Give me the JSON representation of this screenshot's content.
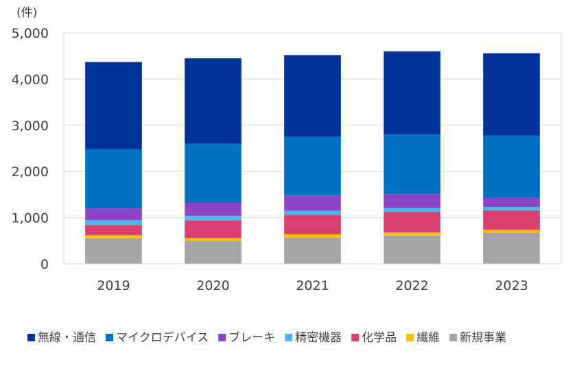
{
  "chart_data": {
    "type": "bar",
    "stacked": true,
    "unit_label": "(件)",
    "categories": [
      "2019",
      "2020",
      "2021",
      "2022",
      "2023"
    ],
    "ylim": [
      0,
      5000
    ],
    "yticks": [
      0,
      1000,
      2000,
      3000,
      4000,
      5000
    ],
    "ytick_labels": [
      "0",
      "1,000",
      "2,000",
      "3,000",
      "4,000",
      "5,000"
    ],
    "grid": true,
    "legend_position": "bottom",
    "series": [
      {
        "name": "新規事業",
        "color": "#A5A5A5",
        "values": [
          550,
          490,
          570,
          610,
          670
        ]
      },
      {
        "name": "繊維",
        "color": "#FFC000",
        "values": [
          70,
          70,
          70,
          70,
          70
        ]
      },
      {
        "name": "化学品",
        "color": "#D94070",
        "values": [
          220,
          380,
          420,
          440,
          420
        ]
      },
      {
        "name": "精密機器",
        "color": "#4BB8EC",
        "values": [
          110,
          100,
          90,
          90,
          70
        ]
      },
      {
        "name": "ブレーキ",
        "color": "#8E44C9",
        "values": [
          250,
          280,
          330,
          300,
          200
        ]
      },
      {
        "name": "マイクロデバイス",
        "color": "#0070C0",
        "values": [
          1280,
          1280,
          1270,
          1290,
          1350
        ]
      },
      {
        "name": "無線・通信",
        "color": "#003399",
        "values": [
          1890,
          1850,
          1770,
          1800,
          1780
        ]
      }
    ],
    "legend_order": [
      "無線・通信",
      "マイクロデバイス",
      "ブレーキ",
      "精密機器",
      "化学品",
      "繊維",
      "新規事業"
    ]
  }
}
